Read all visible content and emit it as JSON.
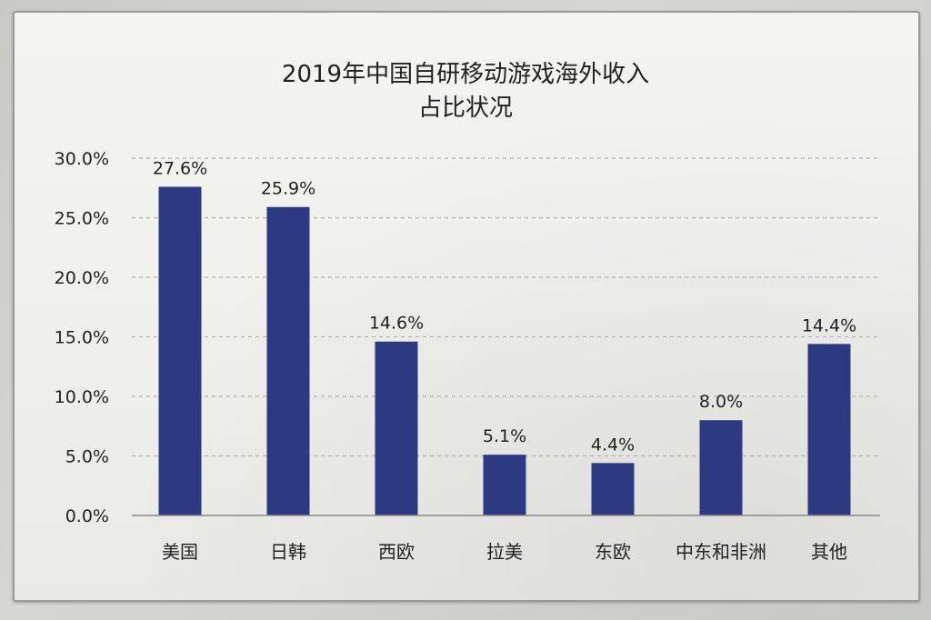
{
  "chart_data": {
    "type": "bar",
    "title": "2019年中国自研移动游戏海外收入",
    "subtitle": "占比状况",
    "categories": [
      "美国",
      "日韩",
      "西欧",
      "拉美",
      "东欧",
      "中东和非洲",
      "其他"
    ],
    "values": [
      27.6,
      25.9,
      14.6,
      5.1,
      4.4,
      8.0,
      14.4
    ],
    "value_labels": [
      "27.6%",
      "25.9%",
      "14.6%",
      "5.1%",
      "4.4%",
      "8.0%",
      "14.4%"
    ],
    "ylim": [
      0,
      30
    ],
    "yticks": [
      0,
      5,
      10,
      15,
      20,
      25,
      30
    ],
    "ytick_labels": [
      "0.0%",
      "5.0%",
      "10.0%",
      "15.0%",
      "20.0%",
      "25.0%",
      "30.0%"
    ],
    "xlabel": "",
    "ylabel": "",
    "grid": true,
    "legend": "none",
    "bar_color": "#2d3a82"
  }
}
